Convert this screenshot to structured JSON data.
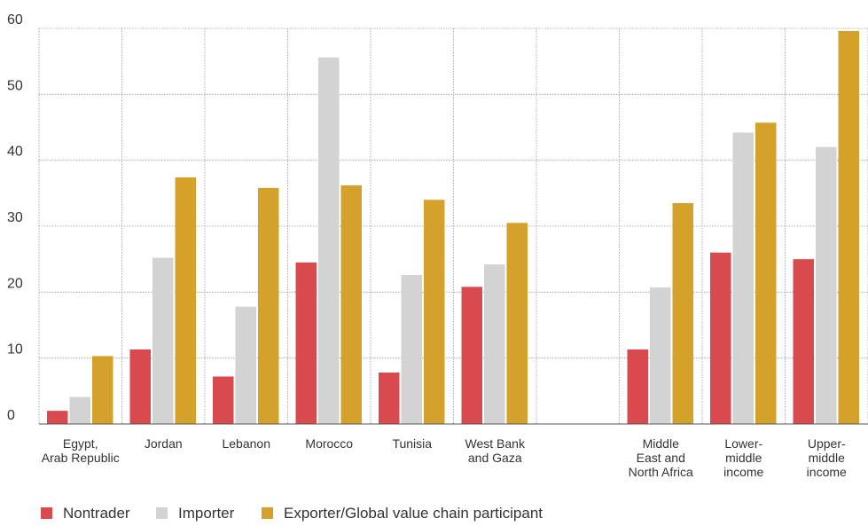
{
  "chart_data": {
    "type": "bar",
    "categories": [
      [
        "Egypt,",
        "Arab Republic"
      ],
      [
        "Jordan"
      ],
      [
        "Lebanon"
      ],
      [
        "Morocco"
      ],
      [
        "Tunisia"
      ],
      [
        "West Bank",
        "and Gaza"
      ],
      [
        ""
      ],
      [
        "Middle",
        "East and",
        "North Africa"
      ],
      [
        "Lower-",
        "middle",
        "income"
      ],
      [
        "Upper-",
        "middle",
        "income"
      ]
    ],
    "series": [
      {
        "name": "Nontrader",
        "color": "#d94a4e",
        "values": [
          2,
          11.3,
          7.2,
          24.5,
          7.8,
          20.8,
          null,
          11.3,
          26,
          25
        ]
      },
      {
        "name": "Importer",
        "color": "#d3d3d3",
        "values": [
          4.1,
          25.2,
          17.8,
          55.6,
          22.6,
          24.2,
          null,
          20.7,
          44.2,
          42
        ]
      },
      {
        "name": "Exporter/Global value chain participant",
        "color": "#d4a12a",
        "values": [
          10.3,
          37.4,
          35.8,
          36.2,
          34,
          30.5,
          null,
          33.5,
          45.7,
          59.6
        ]
      }
    ],
    "yticks": [
      "0",
      "10",
      "20",
      "30",
      "40",
      "50",
      "60"
    ],
    "ylim": [
      0,
      60
    ],
    "grid": true,
    "legend_position": "bottom-left",
    "title": "",
    "xlabel": "",
    "ylabel": ""
  }
}
